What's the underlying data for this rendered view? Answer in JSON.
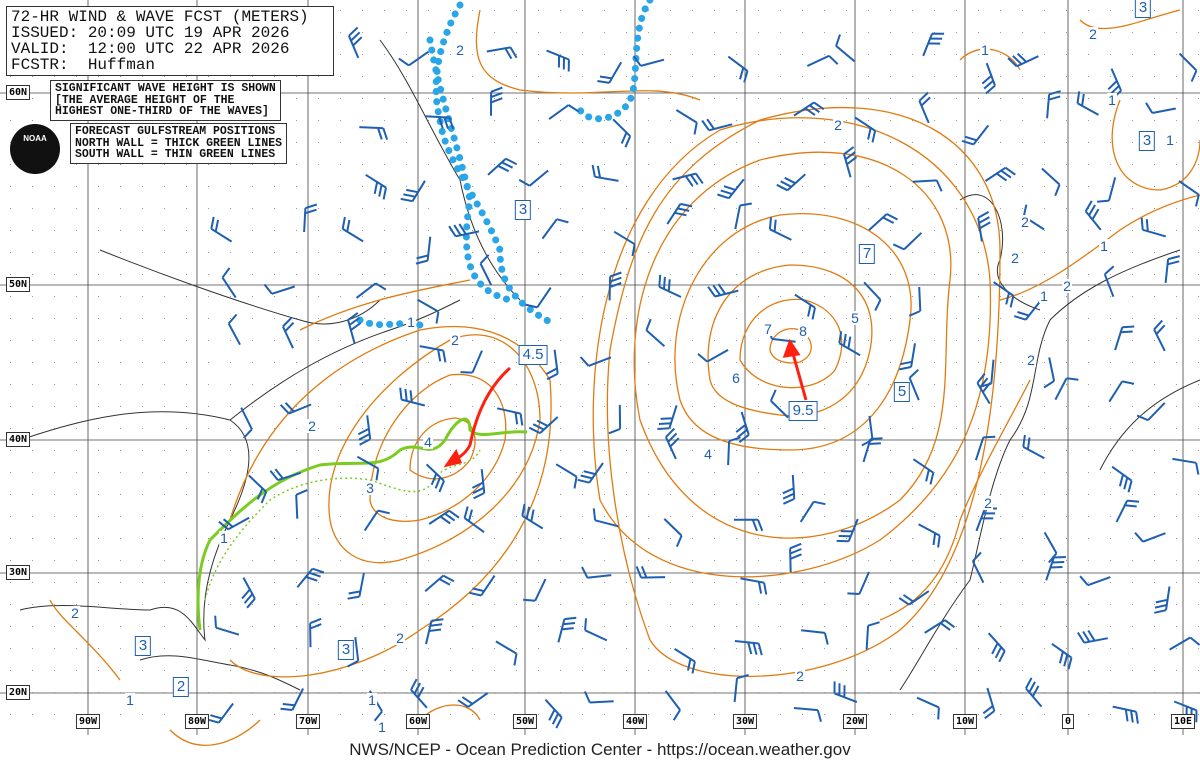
{
  "header": {
    "title": "72-HR WIND & WAVE FCST (METERS)",
    "issued": "ISSUED: 20:09 UTC 19 APR 2026",
    "valid": "VALID:  12:00 UTC 22 APR 2026",
    "forecaster": "FCSTR:  Huffman"
  },
  "wave_note": [
    "SIGNIFICANT WAVE HEIGHT IS SHOWN",
    "[THE AVERAGE HEIGHT OF THE",
    "HIGHEST ONE-THIRD OF THE WAVES]"
  ],
  "gulfstream_note": [
    "FORECAST GULFSTREAM POSITIONS",
    "NORTH WALL = THICK GREEN LINES",
    "SOUTH WALL = THIN GREEN LINES"
  ],
  "logo": {
    "text": "NOAA"
  },
  "latitudes": [
    "60N",
    "50N",
    "40N",
    "30N",
    "20N"
  ],
  "longitudes": [
    "90W",
    "80W",
    "70W",
    "60W",
    "50W",
    "40W",
    "30W",
    "20W",
    "10W",
    "0",
    "10E"
  ],
  "boxed_values": [
    "3",
    "3",
    "3",
    "7",
    "4.5",
    "9.5",
    "5",
    "3",
    "3",
    "2"
  ],
  "contour_labels": [
    "2",
    "2",
    "1",
    "2",
    "1",
    "1",
    "2",
    "2",
    "1",
    "2",
    "1",
    "1",
    "2",
    "2",
    "3",
    "4",
    "1",
    "2",
    "2",
    "4",
    "5",
    "6",
    "7",
    "8",
    "2",
    "2",
    "2",
    "1",
    "1",
    "1"
  ],
  "colors": {
    "contour": "#e07b10",
    "wind": "#1f5fb0",
    "ice_edge": "#2aa6e8",
    "gulfstream": "#7acc1e",
    "arrow": "#ff2010",
    "grid": "#444444"
  },
  "footer": "NWS/NCEP - Ocean Prediction Center - https://ocean.weather.gov"
}
